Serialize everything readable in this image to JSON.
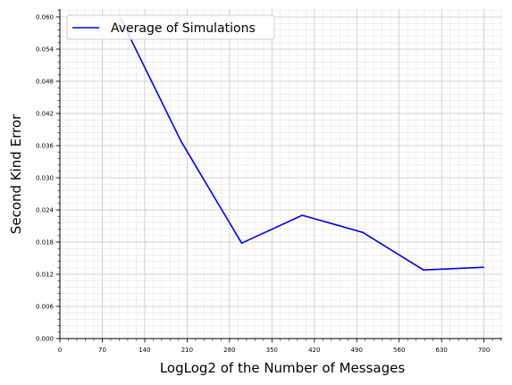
{
  "chart_data": {
    "type": "line",
    "xlabel": "LogLog2 of the Number of Messages",
    "ylabel": "Second Kind Error",
    "xlim": [
      0,
      730
    ],
    "ylim": [
      0,
      0.0615
    ],
    "x_ticks": [
      0,
      70,
      140,
      210,
      280,
      350,
      420,
      490,
      560,
      630,
      700
    ],
    "x_tick_labels": [
      "0",
      "70",
      "140",
      "210",
      "280",
      "350",
      "420",
      "490",
      "560",
      "630",
      "700"
    ],
    "y_ticks": [
      0,
      0.006,
      0.012,
      0.018,
      0.024,
      0.03,
      0.036,
      0.042,
      0.048,
      0.054,
      0.06
    ],
    "y_tick_labels": [
      "0.000",
      "0.006",
      "0.012",
      "0.018",
      "0.024",
      "0.030",
      "0.036",
      "0.042",
      "0.048",
      "0.054",
      "0.060"
    ],
    "grid": true,
    "minor_grid": true,
    "legend_position": "top-left",
    "series": [
      {
        "name": "Average of Simulations",
        "color": "#0000ee",
        "x": [
          100,
          200,
          300,
          400,
          500,
          600,
          700
        ],
        "y": [
          0.0598,
          0.0368,
          0.0178,
          0.023,
          0.0198,
          0.0128,
          0.0133
        ]
      }
    ]
  }
}
